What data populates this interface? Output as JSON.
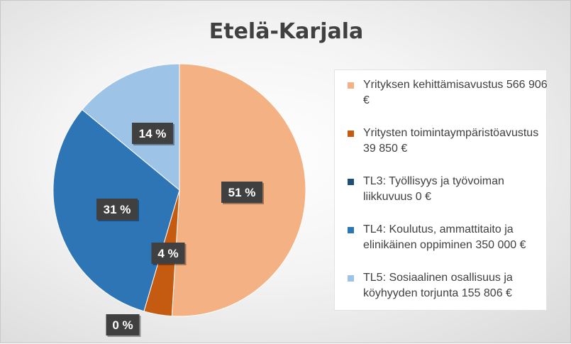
{
  "chart_data": {
    "type": "pie",
    "title": "Etelä-Karjala",
    "slices": [
      {
        "label": "Yrityksen kehittämisavustus 566 906 €",
        "value": 566906,
        "percent_label": "51 %",
        "color": "#F4B183"
      },
      {
        "label": "Yritysten toimintaympäristöavustus 39 850 €",
        "value": 39850,
        "percent_label": "4 %",
        "color": "#C55A11"
      },
      {
        "label": "TL3: Työllisyys ja työvoiman liikkuvuus 0 €",
        "value": 0,
        "percent_label": "0 %",
        "color": "#1F4E79"
      },
      {
        "label": "TL4: Koulutus, ammattitaito  ja elinikäinen oppiminen 350 000 €",
        "value": 350000,
        "percent_label": "31 %",
        "color": "#2E75B6"
      },
      {
        "label": "TL5: Sosiaalinen osallisuus ja köyhyyden torjunta 155 806 €",
        "value": 155806,
        "percent_label": "14 %",
        "color": "#9DC3E6"
      }
    ],
    "legend_position": "right"
  }
}
